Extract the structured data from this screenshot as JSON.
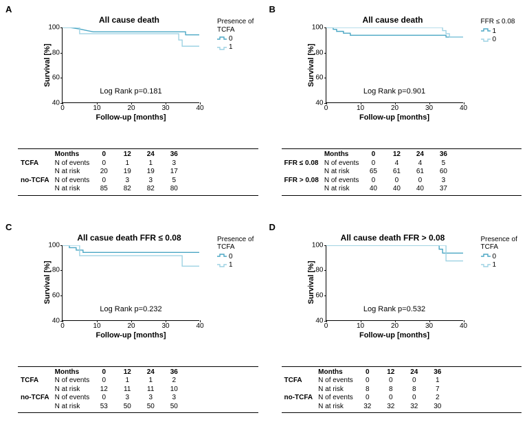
{
  "colors": {
    "line0": "#4aa6c4",
    "line1": "#9dd2e3",
    "axis": "#000000",
    "bg": "#ffffff"
  },
  "axis": {
    "xlabel": "Follow-up [months]",
    "ylabel": "Survival [%]",
    "xlim": [
      0,
      40
    ],
    "xticks": [
      0,
      10,
      20,
      30,
      40
    ],
    "ylim": [
      40,
      100
    ],
    "yticks": [
      40,
      60,
      80,
      100
    ]
  },
  "panels": {
    "A": {
      "label": "A",
      "title": "All cause death",
      "legend_title": "Presence of TCFA",
      "legend_items": [
        "0",
        "1"
      ],
      "logrank": "Log Rank p=0.181",
      "km": {
        "0": [
          [
            0,
            100
          ],
          [
            2,
            100
          ],
          [
            5,
            98.8
          ],
          [
            7,
            97.6
          ],
          [
            9,
            96.5
          ],
          [
            36,
            96.5
          ],
          [
            36,
            94.1
          ],
          [
            40,
            94.1
          ]
        ],
        "1": [
          [
            0,
            100
          ],
          [
            5,
            100
          ],
          [
            5,
            95.0
          ],
          [
            34,
            95.0
          ],
          [
            34,
            90.0
          ],
          [
            35,
            90.0
          ],
          [
            35,
            85.0
          ],
          [
            40,
            85.0
          ]
        ]
      },
      "risk": {
        "months": [
          "0",
          "12",
          "24",
          "36"
        ],
        "groups": [
          {
            "name": "TCFA",
            "rows": [
              {
                "label": "N of events",
                "vals": [
                  "0",
                  "1",
                  "1",
                  "3"
                ]
              },
              {
                "label": "N at risk",
                "vals": [
                  "20",
                  "19",
                  "19",
                  "17"
                ]
              }
            ]
          },
          {
            "name": "no-TCFA",
            "rows": [
              {
                "label": "N of events",
                "vals": [
                  "0",
                  "3",
                  "3",
                  "5"
                ]
              },
              {
                "label": "N at risk",
                "vals": [
                  "85",
                  "82",
                  "82",
                  "80"
                ]
              }
            ]
          }
        ]
      }
    },
    "B": {
      "label": "B",
      "title": "All cause death",
      "legend_title": "FFR ≤ 0.08",
      "legend_items": [
        "1",
        "0"
      ],
      "logrank": "Log Rank p=0.901",
      "km": {
        "0": [
          [
            0,
            100
          ],
          [
            2,
            100
          ],
          [
            2,
            98.5
          ],
          [
            3,
            98.5
          ],
          [
            3,
            96.9
          ],
          [
            5,
            96.9
          ],
          [
            5,
            95.4
          ],
          [
            7,
            95.4
          ],
          [
            7,
            93.8
          ],
          [
            35,
            93.8
          ],
          [
            35,
            92.3
          ],
          [
            40,
            92.3
          ]
        ],
        "1": [
          [
            0,
            100
          ],
          [
            34,
            100
          ],
          [
            34,
            97.5
          ],
          [
            35,
            97.5
          ],
          [
            35,
            95.0
          ],
          [
            36,
            95.0
          ],
          [
            36,
            92.5
          ],
          [
            40,
            92.5
          ]
        ]
      },
      "risk": {
        "months": [
          "0",
          "12",
          "24",
          "36"
        ],
        "groups": [
          {
            "name": "FFR ≤ 0.08",
            "rows": [
              {
                "label": "N of events",
                "vals": [
                  "0",
                  "4",
                  "4",
                  "5"
                ]
              },
              {
                "label": "N at risk",
                "vals": [
                  "65",
                  "61",
                  "61",
                  "60"
                ]
              }
            ]
          },
          {
            "name": "FFR > 0.08",
            "rows": [
              {
                "label": "N of events",
                "vals": [
                  "0",
                  "0",
                  "0",
                  "3"
                ]
              },
              {
                "label": "N at risk",
                "vals": [
                  "40",
                  "40",
                  "40",
                  "37"
                ]
              }
            ]
          }
        ]
      }
    },
    "C": {
      "label": "C",
      "title": "All casue death FFR ≤ 0.08",
      "legend_title": "Presence of TCFA",
      "legend_items": [
        "0",
        "1"
      ],
      "logrank": "Log Rank p=0.232",
      "km": {
        "0": [
          [
            0,
            100
          ],
          [
            2,
            100
          ],
          [
            2,
            98.1
          ],
          [
            4,
            98.1
          ],
          [
            4,
            96.2
          ],
          [
            6,
            96.2
          ],
          [
            6,
            94.3
          ],
          [
            40,
            94.3
          ]
        ],
        "1": [
          [
            0,
            100
          ],
          [
            5,
            100
          ],
          [
            5,
            91.7
          ],
          [
            35,
            91.7
          ],
          [
            35,
            83.3
          ],
          [
            40,
            83.3
          ]
        ]
      },
      "risk": {
        "months": [
          "0",
          "12",
          "24",
          "36"
        ],
        "groups": [
          {
            "name": "TCFA",
            "rows": [
              {
                "label": "N of events",
                "vals": [
                  "0",
                  "1",
                  "1",
                  "2"
                ]
              },
              {
                "label": "N at risk",
                "vals": [
                  "12",
                  "11",
                  "11",
                  "10"
                ]
              }
            ]
          },
          {
            "name": "no-TCFA",
            "rows": [
              {
                "label": "N of events",
                "vals": [
                  "0",
                  "3",
                  "3",
                  "3"
                ]
              },
              {
                "label": "N at risk",
                "vals": [
                  "53",
                  "50",
                  "50",
                  "50"
                ]
              }
            ]
          }
        ]
      }
    },
    "D": {
      "label": "D",
      "title": "All cause death FFR > 0.08",
      "legend_title": "Presence of TCFA",
      "legend_items": [
        "0",
        "1"
      ],
      "logrank": "Log Rank p=0.532",
      "km": {
        "0": [
          [
            0,
            100
          ],
          [
            33,
            100
          ],
          [
            33,
            96.9
          ],
          [
            34,
            96.9
          ],
          [
            34,
            93.8
          ],
          [
            40,
            93.8
          ]
        ],
        "1": [
          [
            0,
            100
          ],
          [
            35,
            100
          ],
          [
            35,
            87.5
          ],
          [
            40,
            87.5
          ]
        ]
      },
      "risk": {
        "months": [
          "0",
          "12",
          "24",
          "36"
        ],
        "groups": [
          {
            "name": "TCFA",
            "rows": [
              {
                "label": "N of events",
                "vals": [
                  "0",
                  "0",
                  "0",
                  "1"
                ]
              },
              {
                "label": "N at risk",
                "vals": [
                  "8",
                  "8",
                  "8",
                  "7"
                ]
              }
            ]
          },
          {
            "name": "no-TCFA",
            "rows": [
              {
                "label": "N of events",
                "vals": [
                  "0",
                  "0",
                  "0",
                  "2"
                ]
              },
              {
                "label": "N at risk",
                "vals": [
                  "32",
                  "32",
                  "32",
                  "30"
                ]
              }
            ]
          }
        ]
      }
    }
  }
}
